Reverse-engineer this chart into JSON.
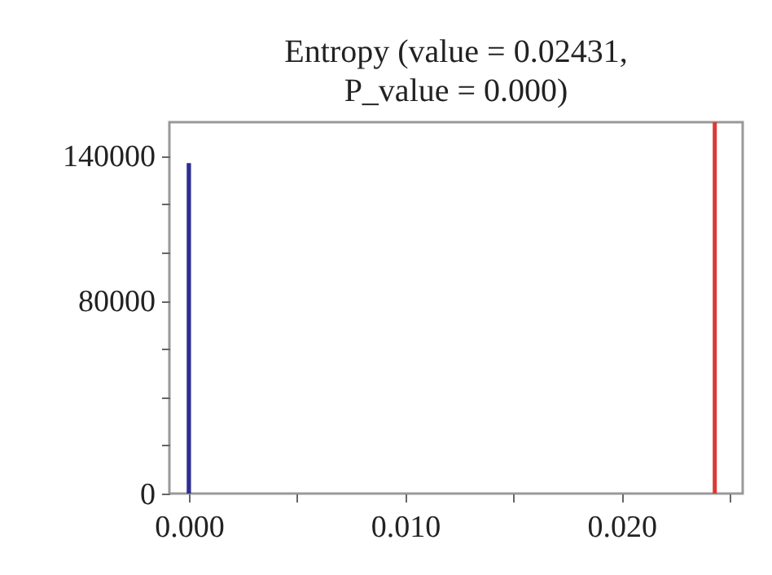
{
  "chart_data": {
    "type": "histogram",
    "title": "Entropy (value = 0.02431, P_value = 0.000)",
    "bins": [
      -0.0001,
      0.0001
    ],
    "values": [
      137000
    ],
    "color": "#2e2e91",
    "xlim": [
      -0.0009,
      0.0256
    ],
    "xticks": [
      {
        "value": 0,
        "label": "0.000"
      },
      {
        "value": 0.005,
        "label": null
      },
      {
        "value": 0.01,
        "label": "0.010"
      },
      {
        "value": 0.015,
        "label": null
      },
      {
        "value": 0.02,
        "label": "0.020"
      },
      {
        "value": 0.025,
        "label": null
      }
    ],
    "ylim": [
      0,
      154000
    ],
    "yticks": [
      0,
      {
        "value": 20000,
        "label": null
      },
      {
        "value": 40000,
        "label": null
      },
      {
        "value": 60000,
        "label": null
      },
      80000,
      {
        "value": 100000,
        "label": null
      },
      {
        "value": 120000,
        "label": null
      },
      140000
    ],
    "ref_lines": [
      {
        "axis": "x",
        "value": 0.02431,
        "color": "#d93a35"
      }
    ],
    "grid": false
  }
}
